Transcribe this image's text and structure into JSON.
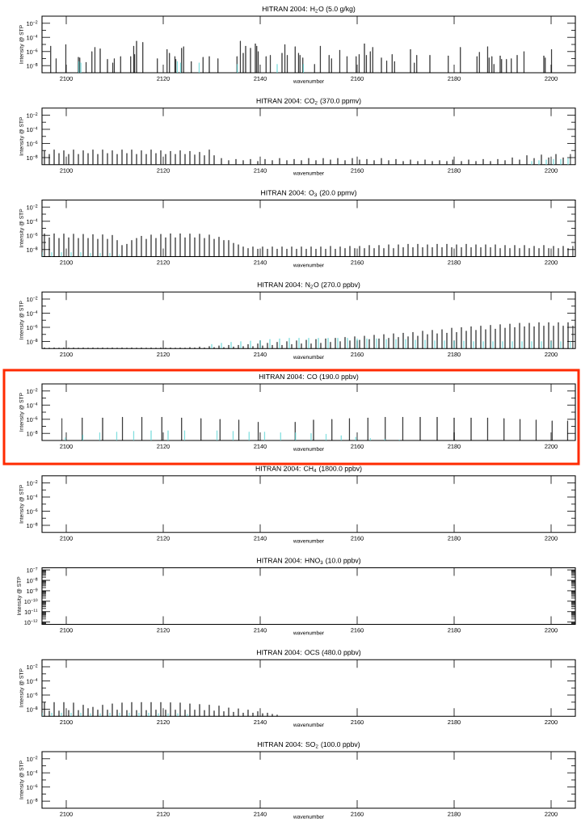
{
  "chart_data": [
    {
      "type": "bar",
      "title": "HITRAN 2004: H$_{2}$O (5.0 g/kg)",
      "xlabel": "wavenumber",
      "ylabel": "Intensity @ STP",
      "log": "y",
      "xlim": [
        2095,
        2205
      ],
      "xticks": [
        2100,
        2120,
        2140,
        2160,
        2180,
        2200
      ],
      "ylim": [
        1e-09,
        0.1
      ],
      "yticks": [
        {
          "value": 0.01,
          "label": "10$^{−2}$"
        },
        {
          "value": 0.001,
          "label": null
        },
        {
          "value": 0.0001,
          "label": "10$^{−4}$"
        },
        {
          "value": 1e-05,
          "label": null
        },
        {
          "value": 1e-06,
          "label": "10$^{−6}$"
        },
        {
          "value": 1e-07,
          "label": null
        },
        {
          "value": 1e-08,
          "label": "10$^{−8}$"
        }
      ],
      "series": [
        {
          "color": "#000000",
          "x": [
            2096.8,
            2097.9,
            2099.9,
            2102.5,
            2102.8,
            2104.1,
            2105.3,
            2105.9,
            2107.0,
            2108.5,
            2109.6,
            2109.9,
            2111.2,
            2113.3,
            2113.9,
            2114.1,
            2114.5,
            2115.8,
            2118.8,
            2120.8,
            2121.3,
            2122.4,
            2122.6,
            2123.8,
            2124.2,
            2125.8,
            2128.2,
            2129.5,
            2131.3,
            2135.2,
            2135.9,
            2136.5,
            2137.0,
            2138.0,
            2139.0,
            2139.3,
            2139.6,
            2141.2,
            2142.1,
            2144.5,
            2145.1,
            2145.6,
            2147.2,
            2147.9,
            2148.2,
            2148.8,
            2151.2,
            2152.4,
            2154.2,
            2154.7,
            2156.4,
            2157.9,
            2159.8,
            2160.4,
            2161.5,
            2161.9,
            2162.7,
            2163.2,
            2165.0,
            2166.1,
            2167.2,
            2167.7,
            2171.0,
            2171.8,
            2172.3,
            2175.0,
            2178.8,
            2181.3,
            2184.7,
            2185.2,
            2186.9,
            2187.2,
            2187.8,
            2188.2,
            2189.5,
            2189.8,
            2190.8,
            2191.8,
            2193.0,
            2194.4,
            2198.5,
            2198.8,
            2200.1
          ],
          "values": [
            6e-06,
            1e-07,
            1e-05,
            1.6e-07,
            1.3e-07,
            3e-08,
            1e-06,
            4e-06,
            2.5e-06,
            8e-08,
            2.5e-08,
            1e-07,
            2e-07,
            2e-07,
            6e-06,
            4e-07,
            3e-05,
            2e-05,
            1e-07,
            2e-06,
            6e-07,
            2e-07,
            8e-08,
            3e-06,
            5e-06,
            4e-08,
            1.6e-07,
            2e-07,
            1e-07,
            2e-07,
            3e-05,
            6e-07,
            6e-06,
            3e-06,
            1.3e-05,
            6e-06,
            1e-06,
            2e-07,
            3e-07,
            6e-07,
            1e-05,
            3e-07,
            5e-06,
            6e-07,
            3e-07,
            1.3e-07,
            1.6e-08,
            6e-06,
            3e-07,
            1e-07,
            1.6e-06,
            2e-07,
            2e-07,
            4e-07,
            1.3e-05,
            3e-07,
            1e-06,
            4e-06,
            1.3e-07,
            5e-08,
            4e-07,
            4e-08,
            2e-06,
            2.5e-08,
            3e-07,
            3e-07,
            2.5e-07,
            4e-06,
            2e-07,
            8e-07,
            5e-06,
            1.3e-07,
            2e-07,
            1.6e-08,
            2.5e-07,
            8e-08,
            8e-08,
            1e-07,
            3e-07,
            1e-06,
            2.5e-07,
            1.3e-07,
            2e-06
          ]
        },
        {
          "color": "#5fd8d8",
          "x": [
            2102.6,
            2103.0,
            2122.9,
            2123.6,
            2127.4,
            2135.3,
            2143.5,
            2148.9
          ],
          "values": [
            4e-08,
            2.5e-08,
            4e-08,
            2.5e-08,
            2.5e-08,
            1.6e-08,
            1.6e-08,
            1.6e-08
          ]
        }
      ]
    },
    {
      "type": "bar",
      "title": "HITRAN 2004: CO$_{2}$ (370.0 ppmv)",
      "xlabel": "wavenumber",
      "ylabel": "Intensity @ STP",
      "log": "y",
      "xlim": [
        2095,
        2205
      ],
      "xticks": [
        2100,
        2120,
        2140,
        2160,
        2180,
        2200
      ],
      "ylim": [
        1e-09,
        0.1
      ],
      "yticks": [
        {
          "value": 0.01,
          "label": "10$^{−2}$"
        },
        {
          "value": 0.001,
          "label": null
        },
        {
          "value": 0.0001,
          "label": "10$^{−4}$"
        },
        {
          "value": 1e-05,
          "label": null
        },
        {
          "value": 1e-06,
          "label": "10$^{−6}$"
        },
        {
          "value": 1e-07,
          "label": null
        },
        {
          "value": 1e-08,
          "label": "10$^{−8}$"
        }
      ],
      "series": [
        {
          "color": "#000000",
          "x": [
            2095.5,
            2096.5,
            2097.5,
            2098.5,
            2099.5,
            2100.5,
            2101.5,
            2102.5,
            2103.5,
            2104.5,
            2105.5,
            2106.5,
            2107.5,
            2108.5,
            2109.5,
            2110.5,
            2111.5,
            2112.5,
            2113.5,
            2114.5,
            2115.5,
            2116.5,
            2117.5,
            2118.5,
            2119.5,
            2120.5,
            2121.5,
            2122.5,
            2123.5,
            2124.5,
            2125.5,
            2126.5,
            2127.5,
            2128.5,
            2129.5,
            2130.5,
            2132,
            2133.5,
            2135,
            2136.5,
            2138,
            2139.5,
            2141,
            2142.5,
            2144,
            2145.5,
            2147,
            2148.5,
            2150,
            2151.5,
            2153,
            2154.5,
            2156,
            2157.5,
            2159,
            2160.5,
            2162,
            2163.5,
            2165,
            2166.5,
            2168,
            2169.5,
            2171,
            2172.5,
            2174,
            2175.5,
            2177,
            2178.5,
            2179.7,
            2181.5,
            2183,
            2184.5,
            2186,
            2187.5,
            2189,
            2190.5,
            2192,
            2193.5,
            2195,
            2196.5,
            2198,
            2199.5,
            2201,
            2202.5,
            2204
          ],
          "values": [
            1e-07,
            3e-08,
            1.3e-07,
            4e-08,
            1e-07,
            3e-08,
            1.3e-07,
            3e-08,
            1e-07,
            4e-08,
            1.3e-07,
            3e-08,
            1.3e-07,
            4e-08,
            1e-07,
            3e-08,
            1.3e-07,
            4e-08,
            1.3e-07,
            3e-08,
            1e-07,
            3e-08,
            1.3e-07,
            4e-08,
            1e-07,
            3e-08,
            8e-08,
            3e-08,
            1e-07,
            3e-08,
            8e-08,
            2.5e-08,
            6e-08,
            2e-08,
            1.3e-07,
            2e-08,
            8e-09,
            4e-09,
            6e-09,
            4e-09,
            6e-09,
            3e-09,
            6e-09,
            4e-09,
            8e-09,
            4e-09,
            6e-09,
            4e-09,
            8e-09,
            4e-09,
            8e-09,
            5e-09,
            8e-09,
            4e-09,
            8e-09,
            5e-09,
            6e-09,
            4e-09,
            8e-09,
            4e-09,
            6e-09,
            3e-09,
            5e-09,
            3e-09,
            5e-09,
            3e-09,
            4e-09,
            3e-09,
            5e-09,
            3e-09,
            5e-09,
            3e-09,
            6e-09,
            3e-09,
            6e-09,
            4e-09,
            1e-08,
            5e-09,
            2e-08,
            8e-09,
            2.5e-08,
            1e-08,
            3e-08,
            1e-08,
            3e-08
          ]
        },
        {
          "color": "#5fd8d8",
          "x": [
            2196,
            2197.5,
            2199,
            2200.5,
            2202,
            2203.5
          ],
          "values": [
            3e-09,
            4e-09,
            5e-09,
            6e-09,
            6e-09,
            8e-09
          ]
        }
      ]
    },
    {
      "type": "bar",
      "title": "HITRAN 2004: O$_{3}$ (20.0 ppmv)",
      "xlabel": "wavenumber",
      "ylabel": "Intensity @ STP",
      "log": "y",
      "xlim": [
        2095,
        2205
      ],
      "xticks": [
        2100,
        2120,
        2140,
        2160,
        2180,
        2200
      ],
      "ylim": [
        1e-09,
        0.1
      ],
      "yticks": [
        {
          "value": 0.01,
          "label": "10$^{−2}$"
        },
        {
          "value": 0.001,
          "label": null
        },
        {
          "value": 0.0001,
          "label": "10$^{−4}$"
        },
        {
          "value": 1e-05,
          "label": null
        },
        {
          "value": 1e-06,
          "label": "10$^{−6}$"
        },
        {
          "value": 1e-07,
          "label": null
        },
        {
          "value": 1e-08,
          "label": "10$^{−8}$"
        }
      ],
      "series": [
        {
          "color": "#000000",
          "x": [
            2095.5,
            2096.5,
            2097.5,
            2098.5,
            2099.5,
            2100.5,
            2101.5,
            2102.5,
            2103.5,
            2104.5,
            2105.5,
            2106.5,
            2107.5,
            2108.5,
            2109.5,
            2110.5,
            2111.5,
            2112.5,
            2113.5,
            2114.5,
            2115.5,
            2116.5,
            2117.5,
            2118.5,
            2119.5,
            2120.5,
            2121.5,
            2122.5,
            2123.5,
            2124.5,
            2125.5,
            2126.5,
            2127.5,
            2128.5,
            2129.5,
            2130.5,
            2131.5,
            2132.5,
            2133.5,
            2134.5,
            2135.5,
            2136.5,
            2137.5,
            2138.5,
            2139.5,
            2140.5,
            2141.5,
            2142.5,
            2143.5,
            2144.5,
            2145.5,
            2146.5,
            2147.5,
            2148.5,
            2149.5,
            2150.5,
            2151.5,
            2152.5,
            2153.5,
            2154.5,
            2155.5,
            2156.5,
            2157.5,
            2158.5,
            2159.5,
            2160.5,
            2161.5,
            2162.5,
            2163.5,
            2164.5,
            2165.5,
            2166.5,
            2167.5,
            2168.5,
            2169.5,
            2170.5,
            2171.5,
            2172.5,
            2173.5,
            2174.5,
            2175.5,
            2176.5,
            2177.5,
            2178.5,
            2179.5,
            2180.5,
            2181.5,
            2182.5,
            2183.5,
            2184.5,
            2185.5,
            2186.5,
            2187.5,
            2188.5,
            2189.5,
            2190.5,
            2191.5,
            2192.5,
            2193.5,
            2194.5,
            2195.5,
            2196.5,
            2197.5,
            2198.5,
            2199.5,
            2200.5,
            2201.5,
            2202.5,
            2203.5,
            2204.5
          ],
          "values": [
            1.8e-06,
            5e-07,
            1.8e-06,
            4e-07,
            1.7e-06,
            5e-07,
            1.6e-06,
            4e-07,
            1.5e-06,
            4e-07,
            1.4e-06,
            3e-07,
            1.3e-06,
            3e-07,
            1.1e-06,
            2e-07,
            4e-08,
            6e-08,
            2e-07,
            4e-07,
            8e-07,
            3e-07,
            1.2e-06,
            4e-07,
            1.5e-06,
            5e-07,
            1.8e-06,
            5e-07,
            1.8e-06,
            5e-07,
            1.7e-06,
            5e-07,
            1.6e-06,
            4e-07,
            1.2e-06,
            3e-07,
            6e-07,
            2e-07,
            2e-07,
            8e-08,
            5e-08,
            2.5e-08,
            1.5e-08,
            2.5e-08,
            1.2e-08,
            2.5e-08,
            1.2e-08,
            2.5e-08,
            1.2e-08,
            2.5e-08,
            1.2e-08,
            2.5e-08,
            1.2e-08,
            2.5e-08,
            1.2e-08,
            2.5e-08,
            1.2e-08,
            2.5e-08,
            1.2e-08,
            3e-08,
            1.2e-08,
            2.5e-08,
            1.5e-08,
            3e-08,
            1.5e-08,
            3e-08,
            1.5e-08,
            4e-08,
            1.5e-08,
            4e-08,
            1.5e-08,
            5e-08,
            1.5e-08,
            5e-08,
            2e-08,
            6e-08,
            2e-08,
            6e-08,
            2e-08,
            5e-08,
            2e-08,
            6e-08,
            2e-08,
            6e-08,
            2e-08,
            5e-08,
            2e-08,
            6e-08,
            2e-08,
            5e-08,
            2e-08,
            5e-08,
            2e-08,
            5e-08,
            1.5e-08,
            4e-08,
            1.5e-08,
            4e-08,
            1.5e-08,
            4e-08,
            1.5e-08,
            3e-08,
            1.5e-08,
            4e-08,
            1.5e-08,
            3e-08,
            1.5e-08,
            3e-08,
            1.5e-08,
            3e-08
          ]
        },
        {
          "color": "#5fd8d8",
          "x": [
            2095,
            2097,
            2099,
            2101,
            2103,
            2105,
            2107,
            2109,
            2111
          ],
          "values": [
            4e-09,
            4e-09,
            4e-09,
            4e-09,
            4e-09,
            3e-09,
            3e-09,
            3e-09,
            2e-09
          ]
        }
      ]
    },
    {
      "type": "bar",
      "title": "HITRAN 2004: N$_{2}$O (270.0 ppbv)",
      "xlabel": "wavenumber",
      "ylabel": "Intensity @ STP",
      "log": "y",
      "xlim": [
        2095,
        2205
      ],
      "xticks": [
        2100,
        2120,
        2140,
        2160,
        2180,
        2200
      ],
      "ylim": [
        1e-09,
        0.1
      ],
      "yticks": [
        {
          "value": 0.01,
          "label": "10$^{−2}$"
        },
        {
          "value": 0.001,
          "label": null
        },
        {
          "value": 0.0001,
          "label": "10$^{−4}$"
        },
        {
          "value": 1e-05,
          "label": null
        },
        {
          "value": 1e-06,
          "label": "10$^{−6}$"
        },
        {
          "value": 1e-07,
          "label": null
        },
        {
          "value": 1e-08,
          "label": "10$^{−8}$"
        }
      ],
      "series": [
        {
          "color": "#000000",
          "x": [
            2095.5,
            2096.5,
            2097.5,
            2098.5,
            2099.5,
            2100.5,
            2101.5,
            2102.5,
            2103.5,
            2104.5,
            2105.5,
            2106.5,
            2107.5,
            2108.5,
            2109.5,
            2110.5,
            2111.5,
            2112.5,
            2113.5,
            2114.5,
            2115.5,
            2116.5,
            2117.5,
            2118.5,
            2119.5,
            2120.5,
            2121.5,
            2122.5,
            2123.5,
            2124.5,
            2125.5,
            2126.5,
            2127.5,
            2128.5,
            2129.5,
            2130.5,
            2131.5,
            2132.5,
            2133.5,
            2134.5,
            2135.5,
            2136.5,
            2137.5,
            2138.5,
            2139.5,
            2140.5,
            2141.5,
            2142.5,
            2143.5,
            2144.5,
            2145.5,
            2146.5,
            2147.5,
            2148.5,
            2149.5,
            2150.5,
            2151.5,
            2152.5,
            2153.5,
            2154.5,
            2155.5,
            2156.5,
            2157.5,
            2158.5,
            2159.5,
            2160.5,
            2161.5,
            2162.5,
            2163.5,
            2164.5,
            2165.5,
            2166.5,
            2167.5,
            2168.5,
            2169.5,
            2170.5,
            2171.5,
            2172.5,
            2173.5,
            2174.5,
            2175.5,
            2176.5,
            2177.5,
            2178.5,
            2179.5,
            2180.5,
            2181.5,
            2182.5,
            2183.5,
            2184.5,
            2185.5,
            2186.5,
            2187.5,
            2188.5,
            2189.5,
            2190.5,
            2191.5,
            2192.5,
            2193.5,
            2194.5,
            2195.5,
            2196.5,
            2197.5,
            2198.5,
            2199.5,
            2200.5,
            2201.5,
            2202.5,
            2203.5,
            2204.5
          ],
          "values": [
            1.3e-09,
            1.2e-09,
            1.3e-09,
            1.2e-09,
            1.3e-09,
            1.2e-09,
            1.3e-09,
            1.2e-09,
            1.3e-09,
            1.2e-09,
            1.3e-09,
            1.2e-09,
            1.3e-09,
            1.2e-09,
            1.3e-09,
            1.2e-09,
            1.3e-09,
            1.2e-09,
            1.3e-09,
            1.2e-09,
            1.3e-09,
            1.2e-09,
            1.3e-09,
            1.2e-09,
            1.3e-09,
            1.2e-09,
            1.3e-09,
            1.2e-09,
            1.3e-09,
            1.2e-09,
            1.5e-09,
            1.3e-09,
            1.8e-09,
            1.3e-09,
            2e-09,
            1.5e-09,
            2.5e-09,
            1.5e-09,
            3e-09,
            1.8e-09,
            3e-09,
            2e-09,
            4e-09,
            2e-09,
            5e-09,
            2.5e-09,
            6e-09,
            3e-09,
            8e-09,
            3e-09,
            1e-08,
            4e-09,
            1.3e-08,
            5e-09,
            1.6e-08,
            5e-09,
            2e-08,
            6e-09,
            2.5e-08,
            8e-09,
            3e-08,
            1e-08,
            4e-08,
            1.3e-08,
            5e-08,
            1.6e-08,
            6e-08,
            2e-08,
            8e-08,
            2.5e-08,
            1e-07,
            3e-08,
            1.3e-07,
            4e-08,
            1.6e-07,
            5e-08,
            2e-07,
            6e-08,
            3e-07,
            1e-07,
            4e-07,
            1.3e-07,
            5e-07,
            1.6e-07,
            8e-07,
            2e-07,
            1e-06,
            3e-07,
            1.3e-06,
            4e-07,
            1.6e-06,
            5e-07,
            2e-06,
            6e-07,
            2.5e-06,
            8e-07,
            3e-06,
            1e-06,
            4e-06,
            1.3e-06,
            4e-06,
            1.3e-06,
            5e-06,
            1.6e-06,
            5e-06,
            1.6e-06,
            5e-06,
            1.6e-06,
            5e-06,
            1.6e-06
          ]
        },
        {
          "color": "#5fd8d8",
          "x": [
            2130,
            2132,
            2134,
            2136,
            2138,
            2140,
            2142,
            2144,
            2146,
            2148,
            2150,
            2152,
            2154,
            2156,
            2158,
            2160,
            2162,
            2164,
            2166,
            2168,
            2170,
            2172,
            2174,
            2176,
            2178,
            2180,
            2182,
            2184,
            2186,
            2188,
            2190,
            2192,
            2194,
            2196,
            2198,
            2200,
            2202,
            2204
          ],
          "values": [
            4e-09,
            6e-09,
            8e-09,
            1e-08,
            1.2e-08,
            1.5e-08,
            2e-08,
            2.5e-08,
            3e-08,
            3e-08,
            3e-08,
            3e-08,
            3e-08,
            3e-08,
            3e-08,
            2.5e-08,
            2.5e-08,
            2.5e-08,
            2e-08,
            2e-08,
            2e-08,
            1.6e-08,
            1.6e-08,
            1.3e-08,
            1.3e-08,
            1.2e-08,
            1.2e-08,
            1e-08,
            1e-08,
            1e-08,
            1e-08,
            1e-08,
            1e-08,
            1e-08,
            1e-08,
            1e-08,
            1e-08,
            1e-08
          ]
        }
      ]
    },
    {
      "type": "bar",
      "title": "HITRAN 2004: CO (190.0 ppbv)",
      "xlabel": "wavenumber",
      "ylabel": "Intensity @ STP",
      "log": "y",
      "xlim": [
        2095,
        2205
      ],
      "xticks": [
        2100,
        2120,
        2140,
        2160,
        2180,
        2200
      ],
      "ylim": [
        1e-09,
        0.1
      ],
      "yticks": [
        {
          "value": 0.01,
          "label": "10$^{−2}$"
        },
        {
          "value": 0.001,
          "label": null
        },
        {
          "value": 0.0001,
          "label": "10$^{−4}$"
        },
        {
          "value": 1e-05,
          "label": null
        },
        {
          "value": 1e-06,
          "label": "10$^{−6}$"
        },
        {
          "value": 1e-07,
          "label": null
        },
        {
          "value": 1e-08,
          "label": "10$^{−8}$"
        }
      ],
      "series": [
        {
          "color": "#000000",
          "x": [
            2099.1,
            2103.3,
            2107.5,
            2111.6,
            2115.6,
            2119.7,
            2123.8,
            2127.8,
            2131.7,
            2135.6,
            2139.6,
            2147.2,
            2151.0,
            2154.8,
            2158.4,
            2162.2,
            2165.8,
            2169.4,
            2173.0,
            2176.5,
            2180.0,
            2183.5,
            2186.9,
            2190.3,
            2193.6,
            2196.9,
            2200.2,
            2203.4
          ],
          "values": [
            1.3e-06,
            1.6e-06,
            1.6e-06,
            2e-06,
            2e-06,
            2e-06,
            1.6e-06,
            1.3e-06,
            1e-06,
            8e-07,
            4e-07,
            4e-07,
            8e-07,
            1e-06,
            1.3e-06,
            1.6e-06,
            2e-06,
            2e-06,
            2e-06,
            2e-06,
            1.6e-06,
            1.6e-06,
            1.6e-06,
            1.3e-06,
            1e-06,
            8e-07,
            6e-07,
            6e-07
          ]
        },
        {
          "color": "#5fd8d8",
          "x": [
            2099.8,
            2103.4,
            2106.9,
            2110.4,
            2113.9,
            2117.5,
            2121.0,
            2124.4,
            2131.1,
            2134.4,
            2137.7,
            2140.9,
            2144.2,
            2147.3,
            2150.5,
            2153.6,
            2156.7,
            2159.7,
            2162.7,
            2165.7,
            2168.7
          ],
          "values": [
            2.5e-09,
            6e-09,
            1.3e-08,
            1.6e-08,
            2e-08,
            2.5e-08,
            2.5e-08,
            2.5e-08,
            2.5e-08,
            2e-08,
            1.6e-08,
            1.6e-08,
            1.3e-08,
            1.3e-08,
            1e-08,
            8e-09,
            5e-09,
            3e-09,
            2e-09,
            1.6e-09,
            1.3e-09
          ]
        }
      ]
    },
    {
      "type": "bar",
      "title": "HITRAN 2004: CH$_{4}$ (1800.0 ppbv)",
      "xlabel": "wavenumber",
      "ylabel": "Intensity @ STP",
      "log": "y",
      "xlim": [
        2095,
        2205
      ],
      "xticks": [
        2100,
        2120,
        2140,
        2160,
        2180,
        2200
      ],
      "ylim": [
        1e-09,
        0.1
      ],
      "yticks": [
        {
          "value": 0.01,
          "label": "10$^{−2}$"
        },
        {
          "value": 0.001,
          "label": null
        },
        {
          "value": 0.0001,
          "label": "10$^{−4}$"
        },
        {
          "value": 1e-05,
          "label": null
        },
        {
          "value": 1e-06,
          "label": "10$^{−6}$"
        },
        {
          "value": 1e-07,
          "label": null
        },
        {
          "value": 1e-08,
          "label": "10$^{−8}$"
        }
      ]
    },
    {
      "type": "bar",
      "title": "HITRAN 2004: HNO$_{3}$ (10.0 ppbv)",
      "xlabel": "wavenumber",
      "ylabel": "Intensity @ STP",
      "log": "y",
      "xlim": [
        2095,
        2205
      ],
      "xticks": [
        2100,
        2120,
        2140,
        2160,
        2180,
        2200
      ],
      "ylim": [
        6e-13,
        1.6e-07
      ],
      "yticks": [
        {
          "value": 1e-07,
          "label": "10$^{−7}$"
        },
        {
          "value": 1e-08,
          "label": "10$^{−8}$"
        },
        {
          "value": 1e-09,
          "label": "10$^{−9}$"
        },
        {
          "value": 1e-10,
          "label": "10$^{−10}$"
        },
        {
          "value": 1e-11,
          "label": "10$^{−11}$"
        },
        {
          "value": 1e-12,
          "label": "10$^{−12}$"
        },
        {
          "value": 7e-13,
          "label": null
        },
        {
          "value": 8e-13,
          "label": null
        },
        {
          "value": 9e-13,
          "label": null
        },
        {
          "value": 2e-12,
          "label": null
        },
        {
          "value": 3e-12,
          "label": null
        },
        {
          "value": 4e-12,
          "label": null
        },
        {
          "value": 5e-12,
          "label": null
        },
        {
          "value": 6e-12,
          "label": null
        },
        {
          "value": 7e-12,
          "label": null
        },
        {
          "value": 8e-12,
          "label": null
        },
        {
          "value": 9e-12,
          "label": null
        },
        {
          "value": 2e-11,
          "label": null
        },
        {
          "value": 3e-11,
          "label": null
        },
        {
          "value": 4e-11,
          "label": null
        },
        {
          "value": 5e-11,
          "label": null
        },
        {
          "value": 6e-11,
          "label": null
        },
        {
          "value": 7e-11,
          "label": null
        },
        {
          "value": 8e-11,
          "label": null
        },
        {
          "value": 9e-11,
          "label": null
        },
        {
          "value": 2e-10,
          "label": null
        },
        {
          "value": 3e-10,
          "label": null
        },
        {
          "value": 4e-10,
          "label": null
        },
        {
          "value": 5e-10,
          "label": null
        },
        {
          "value": 6e-10,
          "label": null
        },
        {
          "value": 7e-10,
          "label": null
        },
        {
          "value": 8e-10,
          "label": null
        },
        {
          "value": 9e-10,
          "label": null
        },
        {
          "value": 2e-09,
          "label": null
        },
        {
          "value": 3e-09,
          "label": null
        },
        {
          "value": 4e-09,
          "label": null
        },
        {
          "value": 5e-09,
          "label": null
        },
        {
          "value": 6e-09,
          "label": null
        },
        {
          "value": 7e-09,
          "label": null
        },
        {
          "value": 8e-09,
          "label": null
        },
        {
          "value": 9e-09,
          "label": null
        },
        {
          "value": 2e-08,
          "label": null
        },
        {
          "value": 3e-08,
          "label": null
        },
        {
          "value": 4e-08,
          "label": null
        },
        {
          "value": 5e-08,
          "label": null
        },
        {
          "value": 6e-08,
          "label": null
        },
        {
          "value": 7e-08,
          "label": null
        },
        {
          "value": 8e-08,
          "label": null
        },
        {
          "value": 9e-08,
          "label": null
        }
      ]
    },
    {
      "type": "bar",
      "title": "HITRAN 2004: OCS (480.0 ppbv)",
      "xlabel": "wavenumber",
      "ylabel": "Intensity @ STP",
      "log": "y",
      "xlim": [
        2095,
        2205
      ],
      "xticks": [
        2100,
        2120,
        2140,
        2160,
        2180,
        2200
      ],
      "ylim": [
        1e-09,
        0.1
      ],
      "yticks": [
        {
          "value": 0.01,
          "label": "10$^{−2}$"
        },
        {
          "value": 0.001,
          "label": null
        },
        {
          "value": 0.0001,
          "label": "10$^{−4}$"
        },
        {
          "value": 1e-05,
          "label": null
        },
        {
          "value": 1e-06,
          "label": "10$^{−6}$"
        },
        {
          "value": 1e-07,
          "label": null
        },
        {
          "value": 1e-08,
          "label": "10$^{−8}$"
        }
      ],
      "series": [
        {
          "color": "#000000",
          "x": [
            2095.5,
            2096.5,
            2097.5,
            2098.5,
            2099.5,
            2100.5,
            2101.5,
            2102.5,
            2103.5,
            2104.5,
            2105.5,
            2106.5,
            2107.5,
            2108.5,
            2109.5,
            2110.5,
            2111.5,
            2112.5,
            2113.5,
            2114.5,
            2115.5,
            2116.5,
            2117.5,
            2118.5,
            2119.5,
            2120.5,
            2121.5,
            2122.5,
            2123.5,
            2124.5,
            2125.5,
            2126.5,
            2127.5,
            2128.5,
            2129.5,
            2130.5,
            2131.5,
            2132.5,
            2133.5,
            2134.5,
            2135.5,
            2136.5,
            2137.5,
            2138.5,
            2139.5,
            2140.5,
            2141.5,
            2142.5,
            2143.5
          ],
          "values": [
            1e-07,
            6e-09,
            1e-07,
            6e-09,
            1e-07,
            7e-09,
            8e-08,
            7e-09,
            4e-08,
            1.3e-08,
            2e-08,
            8e-09,
            4e-08,
            8e-09,
            6e-08,
            8e-09,
            8e-08,
            7e-09,
            1e-07,
            7e-09,
            1e-07,
            7e-09,
            1e-07,
            8e-09,
            1e-07,
            8e-09,
            9e-08,
            8e-09,
            8e-08,
            8e-09,
            6e-08,
            8e-09,
            5e-08,
            7e-09,
            4e-08,
            6e-09,
            3e-08,
            5e-09,
            1.6e-08,
            4e-09,
            1.2e-08,
            3e-09,
            8e-09,
            3e-09,
            5e-09,
            2.5e-09,
            3e-09,
            2e-09,
            1.6e-09
          ]
        },
        {
          "color": "#5fd8d8",
          "x": [
            2095,
            2097,
            2099,
            2101,
            2103,
            2105,
            2107,
            2109,
            2111,
            2113,
            2115,
            2117,
            2119,
            2121,
            2123,
            2125
          ],
          "values": [
            3e-09,
            3e-09,
            3e-09,
            3e-09,
            3e-09,
            2.5e-09,
            2.5e-09,
            3e-09,
            3e-09,
            3e-09,
            3e-09,
            3e-09,
            2.5e-09,
            2.5e-09,
            2.5e-09,
            2e-09
          ]
        }
      ]
    },
    {
      "type": "bar",
      "title": "HITRAN 2004: SO$_{2}$ (100.0 ppbv)",
      "xlabel": "wavenumber",
      "ylabel": "Intensity @ STP",
      "log": "y",
      "xlim": [
        2095,
        2205
      ],
      "xticks": [
        2100,
        2120,
        2140,
        2160,
        2180,
        2200
      ],
      "ylim": [
        1e-09,
        0.1
      ],
      "yticks": [
        {
          "value": 0.01,
          "label": "10$^{−2}$"
        },
        {
          "value": 0.001,
          "label": null
        },
        {
          "value": 0.0001,
          "label": "10$^{−4}$"
        },
        {
          "value": 1e-05,
          "label": null
        },
        {
          "value": 1e-06,
          "label": "10$^{−6}$"
        },
        {
          "value": 1e-07,
          "label": null
        },
        {
          "value": 1e-08,
          "label": "10$^{−8}$"
        }
      ]
    }
  ]
}
